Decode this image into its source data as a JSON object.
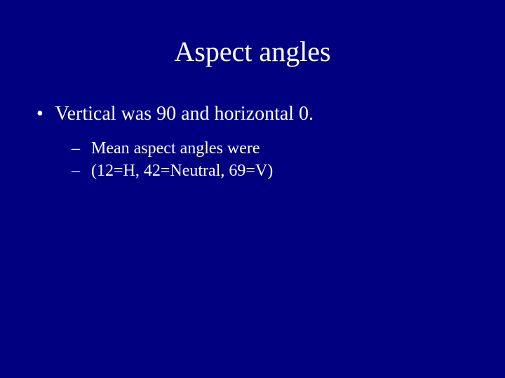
{
  "background_color": "#000080",
  "text_color": "#ffffff",
  "font_family": "Times New Roman",
  "slide": {
    "title": "Aspect angles",
    "title_fontsize": 40,
    "bullets": [
      {
        "level": 1,
        "text": "Vertical was 90 and horizontal 0.",
        "fontsize": 28
      },
      {
        "level": 2,
        "text": "Mean aspect angles were",
        "fontsize": 24
      },
      {
        "level": 2,
        "text": "(12=H, 42=Neutral, 69=V)",
        "fontsize": 24
      }
    ]
  }
}
